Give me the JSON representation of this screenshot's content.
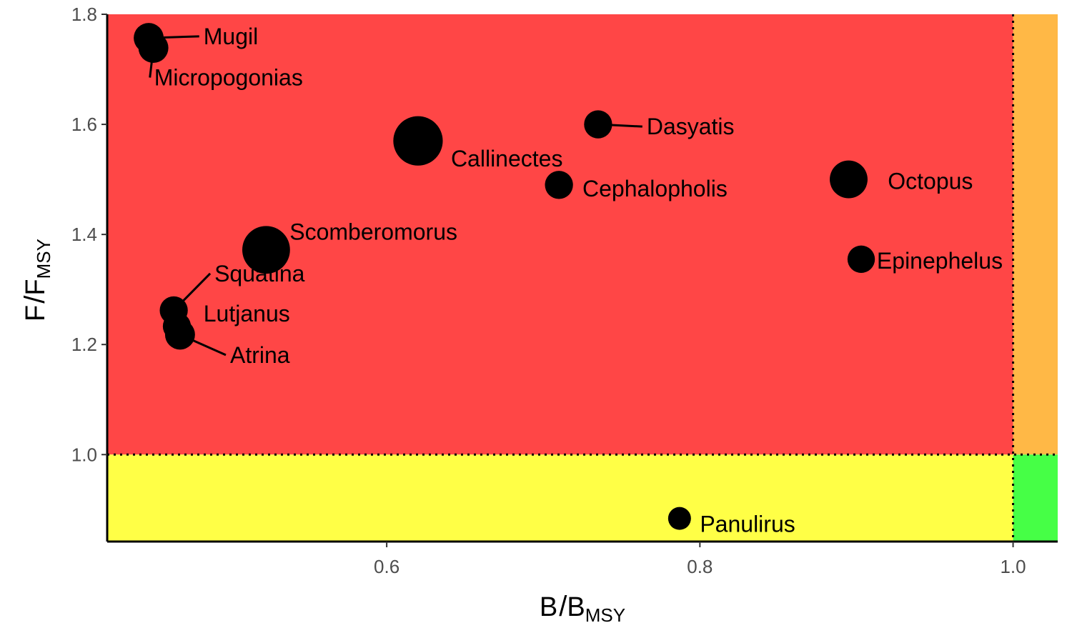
{
  "chart_data": {
    "type": "scatter",
    "x_axis": {
      "label_main": "B",
      "label_sub": "MSY",
      "range": [
        0.4215,
        1.0285
      ],
      "ticks": [
        0.6,
        0.8,
        1.0
      ],
      "tick_labels": [
        "0.6",
        "0.8",
        "1.0"
      ]
    },
    "y_axis": {
      "label_main": "F",
      "label_sub": "MSY",
      "range": [
        0.842,
        1.8
      ],
      "ticks": [
        1.0,
        1.2,
        1.4,
        1.6,
        1.8
      ],
      "tick_labels": [
        "1.0",
        "1.2",
        "1.4",
        "1.6",
        "1.8"
      ]
    },
    "reference_lines": {
      "x": 1.0,
      "y": 1.0,
      "style": "dotted"
    },
    "quadrants": [
      {
        "name": "overfished-overfishing",
        "color": "#ff4646"
      },
      {
        "name": "not-overfished-overfishing",
        "color": "#ffb846"
      },
      {
        "name": "overfished-no-overfishing",
        "color": "#ffff46"
      },
      {
        "name": "healthy",
        "color": "#46ff46"
      }
    ],
    "points": [
      {
        "name": "Mugil",
        "x": 0.448,
        "y": 1.757,
        "size": 2.0,
        "label_x": 0.483,
        "label_y": 1.76,
        "leader": true
      },
      {
        "name": "Micropogonias",
        "x": 0.451,
        "y": 1.739,
        "size": 2.0,
        "label_x": 0.4515,
        "label_y": 1.685,
        "leader": true
      },
      {
        "name": "Callinectes",
        "x": 0.62,
        "y": 1.57,
        "size": 6.5,
        "label_x": 0.641,
        "label_y": 1.538,
        "leader": false
      },
      {
        "name": "Dasyatis",
        "x": 0.735,
        "y": 1.6,
        "size": 1.7,
        "label_x": 0.766,
        "label_y": 1.596,
        "leader": true
      },
      {
        "name": "Cephalopholis",
        "x": 0.71,
        "y": 1.49,
        "size": 1.7,
        "label_x": 0.725,
        "label_y": 1.483,
        "leader": false
      },
      {
        "name": "Octopus",
        "x": 0.895,
        "y": 1.5,
        "size": 3.5,
        "label_x": 0.92,
        "label_y": 1.497,
        "leader": false
      },
      {
        "name": "Scomberomorus",
        "x": 0.523,
        "y": 1.372,
        "size": 6.0,
        "label_x": 0.538,
        "label_y": 1.405,
        "leader": false
      },
      {
        "name": "Epinephelus",
        "x": 0.903,
        "y": 1.355,
        "size": 1.6,
        "label_x": 0.913,
        "label_y": 1.352,
        "leader": false
      },
      {
        "name": "Squatina",
        "x": 0.464,
        "y": 1.262,
        "size": 1.7,
        "label_x": 0.49,
        "label_y": 1.329,
        "leader": true
      },
      {
        "name": "Lutjanus",
        "x": 0.466,
        "y": 1.233,
        "size": 1.7,
        "label_x": 0.483,
        "label_y": 1.256,
        "leader": false
      },
      {
        "name": "Atrina",
        "x": 0.468,
        "y": 1.218,
        "size": 2.0,
        "label_x": 0.5,
        "label_y": 1.181,
        "leader": true
      },
      {
        "name": "Panulirus",
        "x": 0.787,
        "y": 0.884,
        "size": 1.0,
        "label_x": 0.8,
        "label_y": 0.874,
        "leader": false
      }
    ]
  },
  "colors": {
    "point": "#000000",
    "axis": "#000000",
    "tick_text": "#4d4d4d"
  }
}
